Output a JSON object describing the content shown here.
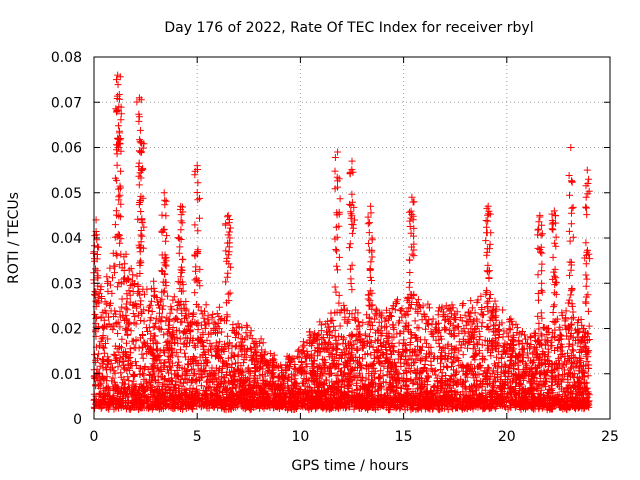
{
  "chart_data": {
    "type": "scatter",
    "title": "Day 176 of 2022, Rate Of TEC Index for receiver rbyl",
    "xlabel": "GPS time / hours",
    "ylabel": "ROTI / TECUs",
    "xlim": [
      0,
      25
    ],
    "ylim": [
      0,
      0.08
    ],
    "xticks": [
      0,
      5,
      10,
      15,
      20,
      25
    ],
    "xtick_labels": [
      "0",
      "5",
      "10",
      "15",
      "20",
      "25"
    ],
    "yticks": [
      0,
      0.01,
      0.02,
      0.03,
      0.04,
      0.05,
      0.06,
      0.07,
      0.08
    ],
    "ytick_labels": [
      "0",
      "0.01",
      "0.02",
      "0.03",
      "0.04",
      "0.05",
      "0.06",
      "0.07",
      "0.08"
    ],
    "grid": true,
    "marker": "plus",
    "color": "#ff0000",
    "series": [
      {
        "name": "ROTI",
        "x_range": [
          0,
          24
        ],
        "typical_envelope": {
          "x": [
            0,
            1,
            2,
            3,
            4,
            5,
            6,
            7,
            8,
            9,
            10,
            11,
            12,
            13,
            14,
            15,
            16,
            17,
            18,
            19,
            20,
            21,
            22,
            23,
            24
          ],
          "y": [
            0.025,
            0.04,
            0.035,
            0.03,
            0.028,
            0.025,
            0.024,
            0.022,
            0.018,
            0.012,
            0.016,
            0.022,
            0.025,
            0.024,
            0.026,
            0.027,
            0.026,
            0.025,
            0.026,
            0.027,
            0.024,
            0.018,
            0.021,
            0.024,
            0.02
          ]
        },
        "peaks": [
          {
            "x": 0.1,
            "y": 0.044
          },
          {
            "x": 1.15,
            "y": 0.076
          },
          {
            "x": 1.2,
            "y": 0.069
          },
          {
            "x": 2.2,
            "y": 0.071
          },
          {
            "x": 2.3,
            "y": 0.061
          },
          {
            "x": 3.4,
            "y": 0.05
          },
          {
            "x": 4.2,
            "y": 0.047
          },
          {
            "x": 5.0,
            "y": 0.056
          },
          {
            "x": 6.5,
            "y": 0.045
          },
          {
            "x": 11.8,
            "y": 0.059
          },
          {
            "x": 12.5,
            "y": 0.057
          },
          {
            "x": 13.4,
            "y": 0.047
          },
          {
            "x": 15.4,
            "y": 0.049
          },
          {
            "x": 19.1,
            "y": 0.047
          },
          {
            "x": 21.6,
            "y": 0.045
          },
          {
            "x": 22.3,
            "y": 0.046
          },
          {
            "x": 23.1,
            "y": 0.06
          },
          {
            "x": 23.9,
            "y": 0.055
          }
        ]
      }
    ]
  }
}
